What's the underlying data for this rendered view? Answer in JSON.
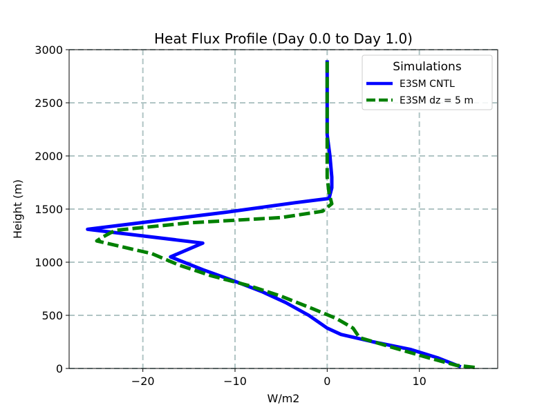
{
  "chart_data": {
    "type": "line",
    "title": "Heat Flux Profile (Day 0.0 to Day 1.0)",
    "xlabel": "W/m2",
    "ylabel": "Height (m)",
    "xlim": [
      -28,
      18.5
    ],
    "ylim": [
      0,
      3000
    ],
    "xticks": [
      -20,
      -10,
      0,
      10
    ],
    "xtick_labels": [
      "−20",
      "−10",
      "0",
      "10"
    ],
    "yticks": [
      0,
      500,
      1000,
      1500,
      2000,
      2500,
      3000
    ],
    "ytick_labels": [
      "0",
      "500",
      "1000",
      "1500",
      "2000",
      "2500",
      "3000"
    ],
    "grid": true,
    "legend": {
      "title": "Simulations",
      "position": "top-right"
    },
    "series": [
      {
        "name": "E3SM CNTL",
        "color": "#0000ff",
        "style": "solid",
        "points": [
          [
            14.5,
            15
          ],
          [
            12,
            100
          ],
          [
            9,
            180
          ],
          [
            5,
            250
          ],
          [
            1.5,
            320
          ],
          [
            0,
            380
          ],
          [
            -2,
            500
          ],
          [
            -4.5,
            620
          ],
          [
            -7,
            720
          ],
          [
            -10,
            820
          ],
          [
            -13.5,
            930
          ],
          [
            -17,
            1050
          ],
          [
            -13.5,
            1180
          ],
          [
            -26,
            1310
          ],
          [
            -11,
            1470
          ],
          [
            -3.5,
            1560
          ],
          [
            0.2,
            1600
          ],
          [
            0.5,
            1700
          ],
          [
            0.5,
            1800
          ],
          [
            0.3,
            2000
          ],
          [
            0,
            2200
          ],
          [
            0,
            2500
          ],
          [
            0,
            2800
          ],
          [
            0,
            2900
          ]
        ]
      },
      {
        "name": "E3SM dz = 5 m",
        "color": "#008000",
        "style": "dashed",
        "points": [
          [
            16,
            10
          ],
          [
            14,
            30
          ],
          [
            11,
            100
          ],
          [
            7,
            200
          ],
          [
            3.5,
            290
          ],
          [
            2.8,
            380
          ],
          [
            1,
            470
          ],
          [
            -1.5,
            560
          ],
          [
            -5,
            680
          ],
          [
            -8.5,
            780
          ],
          [
            -12.5,
            870
          ],
          [
            -16,
            970
          ],
          [
            -19,
            1080
          ],
          [
            -25,
            1200
          ],
          [
            -24.5,
            1230
          ],
          [
            -23,
            1300
          ],
          [
            -15,
            1370
          ],
          [
            -5,
            1420
          ],
          [
            -0.5,
            1480
          ],
          [
            0.5,
            1550
          ],
          [
            0.2,
            1650
          ],
          [
            0,
            1800
          ],
          [
            0,
            2000
          ],
          [
            0,
            2300
          ],
          [
            0,
            2600
          ],
          [
            0,
            2920
          ]
        ]
      }
    ]
  }
}
